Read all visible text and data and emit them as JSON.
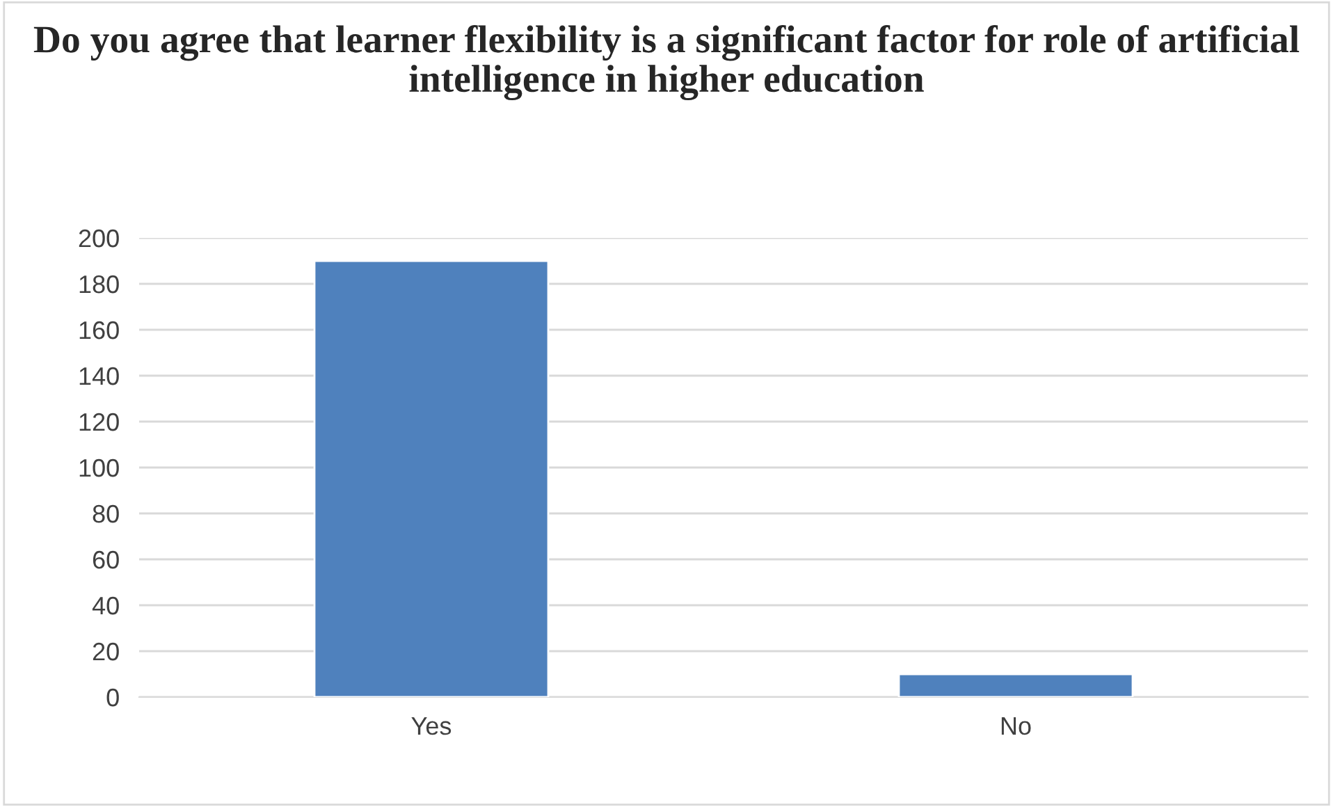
{
  "chart_data": {
    "type": "bar",
    "title": "Do you agree that learner flexibility is a significant factor for role of artificial intelligence in higher education",
    "categories": [
      "Yes",
      "No"
    ],
    "values": [
      190,
      10
    ],
    "color": "#4f81bd",
    "ylim": [
      0,
      200
    ],
    "yticks": [
      0,
      20,
      40,
      60,
      80,
      100,
      120,
      140,
      160,
      180,
      200
    ],
    "grid": "y",
    "legend": false
  }
}
